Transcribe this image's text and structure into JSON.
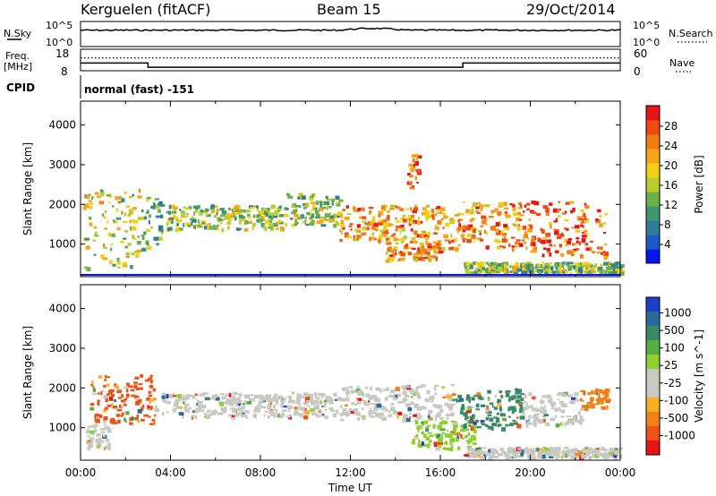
{
  "header": {
    "station": "Kerguelen (fitACF)",
    "beam": "Beam 15",
    "date": "29/Oct/2014"
  },
  "noise_panel": {
    "left_label": "N.Sky",
    "right_label": "N.Search",
    "left_ticks": [
      "10^5",
      "10^0"
    ],
    "right_ticks": [
      "10^5",
      "10^0"
    ]
  },
  "freq_panel": {
    "left_label_1": "Freq.",
    "left_label_2": "[MHz]",
    "right_label": "Nave",
    "left_ticks": [
      "18",
      "8"
    ],
    "right_ticks": [
      "60",
      "0"
    ],
    "freq_segments": [
      {
        "start_h": 0,
        "end_h": 3.0,
        "mhz": 11.6
      },
      {
        "start_h": 3.0,
        "end_h": 17.0,
        "mhz": 9.6
      },
      {
        "start_h": 17.0,
        "end_h": 24.0,
        "mhz": 11.6
      }
    ],
    "nave_level": 0.6
  },
  "cpid": {
    "label": "CPID",
    "text": "normal (fast) -151"
  },
  "chart_data": [
    {
      "type": "heatmap",
      "name": "Power",
      "ylabel": "Slant Range [km]",
      "ylim": [
        180,
        4600
      ],
      "yticks": [
        1000,
        2000,
        3000,
        4000
      ],
      "xlim": [
        0,
        24
      ],
      "colorbar_label": "Power [dB]",
      "colorbar_ticks": [
        "4",
        "8",
        "12",
        "16",
        "20",
        "24",
        "28"
      ],
      "colorbar_colors": [
        "#0018ee",
        "#1d5bc8",
        "#2e7d9a",
        "#3f9670",
        "#67b24a",
        "#b9cc2c",
        "#f0cf16",
        "#f4a51a",
        "#f27d12",
        "#ef4a14",
        "#e8141a"
      ],
      "blobs": [
        {
          "t0": 0.1,
          "t1": 2.6,
          "r0": 400,
          "r1": 2400,
          "level": 6
        },
        {
          "t0": 2.6,
          "t1": 3.6,
          "r0": 900,
          "r1": 2200,
          "level": 4
        },
        {
          "t0": 3.8,
          "t1": 9.0,
          "r0": 1400,
          "r1": 2000,
          "level": 5
        },
        {
          "t0": 9.0,
          "t1": 11.5,
          "r0": 1500,
          "r1": 2300,
          "level": 5
        },
        {
          "t0": 11.5,
          "t1": 16.2,
          "r0": 1100,
          "r1": 2000,
          "level": 8
        },
        {
          "t0": 14.5,
          "t1": 15.1,
          "r0": 2400,
          "r1": 3300,
          "level": 9
        },
        {
          "t0": 13.5,
          "t1": 16.0,
          "r0": 600,
          "r1": 1100,
          "level": 8
        },
        {
          "t0": 16.2,
          "t1": 19.6,
          "r0": 900,
          "r1": 2100,
          "level": 8
        },
        {
          "t0": 19.6,
          "t1": 23.3,
          "r0": 700,
          "r1": 2100,
          "level": 9
        },
        {
          "t0": 17.0,
          "t1": 24.0,
          "r0": 300,
          "r1": 560,
          "level": 5
        }
      ]
    },
    {
      "type": "heatmap",
      "name": "Velocity",
      "ylabel": "Slant Range [km]",
      "ylim": [
        180,
        4600
      ],
      "yticks": [
        1000,
        2000,
        3000,
        4000
      ],
      "xlim": [
        0,
        24
      ],
      "xticks": [
        "00:00",
        "04:00",
        "08:00",
        "12:00",
        "16:00",
        "20:00",
        "00:00"
      ],
      "xlabel": "Time UT",
      "colorbar_label": "Velocity [m s^-1]",
      "colorbar_ticks": [
        "1000",
        "500",
        "100",
        "25",
        "-25",
        "-100",
        "-500",
        "-1000"
      ],
      "colorbar_colors": [
        "#1c40c8",
        "#2a6a9a",
        "#3a8a68",
        "#56b040",
        "#8ed030",
        "#c9c9c3",
        "#c9c9c3",
        "#f6b020",
        "#f08218",
        "#ee5216",
        "#e8141a"
      ],
      "blobs": [
        {
          "t0": 0.4,
          "t1": 3.4,
          "r0": 1100,
          "r1": 2400,
          "color": "#ee5216"
        },
        {
          "t0": 0.2,
          "t1": 1.2,
          "r0": 500,
          "r1": 1100,
          "color": "#c9c9c3"
        },
        {
          "t0": 3.6,
          "t1": 11.5,
          "r0": 1300,
          "r1": 1900,
          "color": "#c9c9c3"
        },
        {
          "t0": 11.5,
          "t1": 16.5,
          "r0": 1200,
          "r1": 2100,
          "color": "#c9c9c3"
        },
        {
          "t0": 14.6,
          "t1": 17.5,
          "r0": 500,
          "r1": 1200,
          "color": "#8ed030"
        },
        {
          "t0": 16.5,
          "t1": 19.6,
          "r0": 1000,
          "r1": 2000,
          "color": "#3a8a68"
        },
        {
          "t0": 19.6,
          "t1": 22.2,
          "r0": 1100,
          "r1": 1900,
          "color": "#c9c9c3"
        },
        {
          "t0": 22.2,
          "t1": 23.5,
          "r0": 1500,
          "r1": 2000,
          "color": "#f08218"
        },
        {
          "t0": 17.0,
          "t1": 24.0,
          "r0": 280,
          "r1": 520,
          "color": "#c9c9c3"
        }
      ]
    }
  ]
}
